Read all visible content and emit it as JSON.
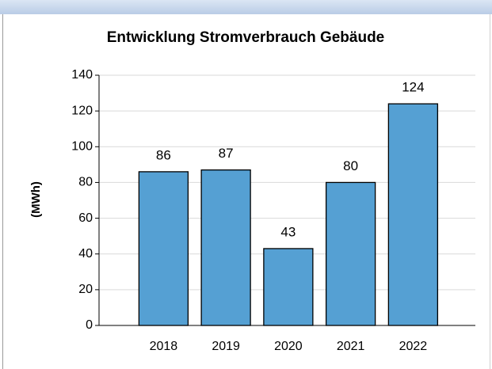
{
  "chart_data": {
    "type": "bar",
    "title": "Entwicklung Stromverbrauch Gebäude",
    "y_label": "(MWh)",
    "categories": [
      "2018",
      "2019",
      "2020",
      "2021",
      "2022"
    ],
    "values": [
      86,
      87,
      43,
      80,
      124
    ],
    "color": "#55a0d3",
    "ylim": [
      0,
      140
    ],
    "yticks": [
      0,
      20,
      40,
      60,
      80,
      100,
      120,
      140
    ],
    "grid": true
  }
}
